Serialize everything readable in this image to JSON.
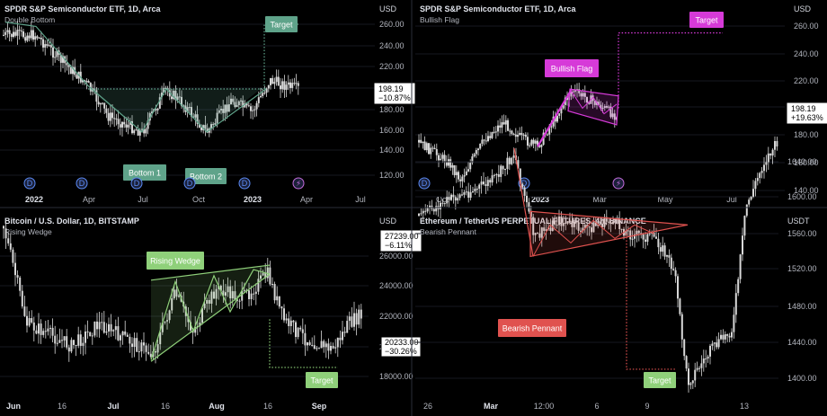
{
  "chart_data": [
    {
      "type": "candlestick",
      "title": "SPDR S&P Semiconductor ETF, 1D, Arca",
      "subtitle": "Double Bottom",
      "unit": "USD",
      "y_ticks": [
        120,
        140,
        160,
        180,
        200,
        220,
        240,
        260
      ],
      "ylim": [
        108,
        282
      ],
      "x_ticks": [
        "2022",
        "Apr",
        "Jul",
        "Oct",
        "2023",
        "Apr",
        "Jul"
      ],
      "bold_x_ticks": [
        "2022",
        "2023"
      ],
      "last_price": "198.19",
      "last_change": "−10.87%",
      "pattern": "Double Bottom",
      "labels": [
        "Bottom 1",
        "Bottom 2",
        "Target"
      ],
      "target_value": 265,
      "neckline": 200,
      "markers": [
        "D",
        "D",
        "D",
        "D",
        "D",
        "⚡"
      ],
      "accent": "#5fa38a"
    },
    {
      "type": "candlestick",
      "title": "SPDR S&P Semiconductor ETF, 1D, Arca",
      "subtitle": "Bullish Flag",
      "unit": "USD",
      "y_ticks": [
        140,
        160,
        180,
        200,
        220,
        240,
        260
      ],
      "ylim": [
        138,
        282
      ],
      "x_ticks": [
        "Oct",
        "2023",
        "Mar",
        "May",
        "Jul"
      ],
      "bold_x_ticks": [
        "2023"
      ],
      "last_price": "198.19",
      "last_change": "+19.63%",
      "pattern": "Bullish Flag",
      "labels": [
        "Bullish Flag",
        "Target"
      ],
      "target_value": 255,
      "markers": [
        "D",
        "D",
        "⚡"
      ],
      "accent": "#d63ad8"
    },
    {
      "type": "candlestick",
      "title": "Bitcoin / U.S. Dollar, 1D, BITSTAMP",
      "subtitle": "Rising Wedge",
      "unit": "USD",
      "y_ticks": [
        18000,
        20000,
        22000,
        24000,
        26000
      ],
      "ylim": [
        16600,
        28600
      ],
      "x_ticks": [
        "Jun",
        "16",
        "Jul",
        "16",
        "Aug",
        "16",
        "Sep"
      ],
      "bold_x_ticks": [
        "Jun",
        "Jul",
        "Aug",
        "Sep"
      ],
      "price_labels": [
        {
          "price": "27239.00",
          "change": "−6.11%",
          "value": 27239
        },
        {
          "price": "20233.00",
          "change": "−30.26%",
          "value": 20233
        }
      ],
      "pattern": "Rising Wedge",
      "labels": [
        "Rising Wedge",
        "Target"
      ],
      "target_value": 18600,
      "accent": "#8fd07a"
    },
    {
      "type": "candlestick",
      "title": "Ethereum / TetherUS PERPETUAL FUTURES, 4h, BINANCE",
      "subtitle": "Bearish Pennant",
      "unit": "USDT",
      "y_ticks": [
        1400,
        1440,
        1480,
        1520,
        1560,
        1600,
        1640
      ],
      "ylim": [
        1370,
        1670
      ],
      "x_ticks": [
        "26",
        "Mar",
        "12:00",
        "6",
        "9",
        "13"
      ],
      "bold_x_ticks": [
        "Mar"
      ],
      "pattern": "Bearish Pennant",
      "labels": [
        "Bearish Pennant",
        "Target"
      ],
      "target_value": 1410,
      "accent": "#e0524f"
    }
  ]
}
